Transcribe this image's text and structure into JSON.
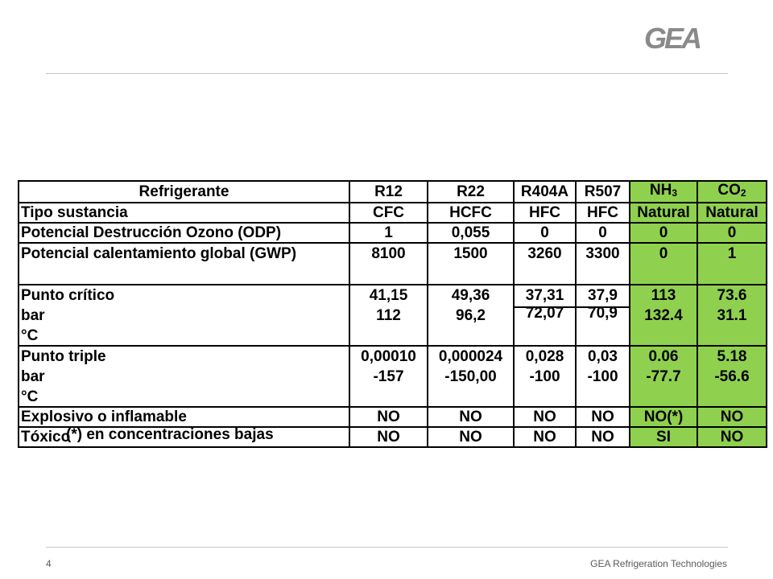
{
  "brand": {
    "logo_text": "GEA",
    "footer": "GEA Refrigeration Technologies",
    "page_number": "4"
  },
  "table": {
    "headers": {
      "label": "Refrigerante",
      "r12": "R12",
      "r22": "R22",
      "r404a": "R404A",
      "r507": "R507",
      "nh3_base": "NH",
      "nh3_sub": "3",
      "co2_base": "CO",
      "co2_sub": "2"
    },
    "rows": {
      "tipo": {
        "label": "Tipo sustancia",
        "values": [
          "CFC",
          "HCFC",
          "HFC",
          "HFC",
          "Natural",
          "Natural"
        ]
      },
      "odp": {
        "label": "Potencial Destrucción Ozono (ODP)",
        "values": [
          "1",
          "0,055",
          "0",
          "0",
          "0",
          "0"
        ]
      },
      "gwp": {
        "label": "Potencial calentamiento global (GWP)",
        "values": [
          "8100",
          "1500",
          "3260",
          "3300",
          "0",
          "1"
        ]
      },
      "critico": {
        "label": "Punto crítico",
        "unit_bar": "bar",
        "unit_c": "°C",
        "bar": [
          "41,15",
          "49,36",
          "37,31",
          "37,9",
          "113",
          "73.6"
        ],
        "c": [
          "112",
          "96,2",
          "72,07",
          "70,9",
          "132.4",
          "31.1"
        ]
      },
      "triple": {
        "label": "Punto triple",
        "unit_bar": "bar",
        "unit_c": "°C",
        "bar": [
          "0,00010",
          "0,000024",
          "0,028",
          "0,03",
          "0.06",
          "5.18"
        ],
        "c": [
          "-157",
          "-150,00",
          "-100",
          "-100",
          "-77.7",
          "-56.6"
        ]
      },
      "explosivo": {
        "label": "Explosivo o inflamable",
        "values": [
          "NO",
          "NO",
          "NO",
          "NO",
          "NO(*)",
          "NO"
        ]
      },
      "toxico": {
        "label": "Tóxico",
        "values": [
          "NO",
          "NO",
          "NO",
          "NO",
          "SI",
          "NO"
        ]
      }
    },
    "footnote": "(*)  en concentraciones bajas"
  },
  "colors": {
    "natural_highlight": "#8fd14f",
    "rule": "#c8c8c8",
    "logo": "#8a8a8a"
  }
}
